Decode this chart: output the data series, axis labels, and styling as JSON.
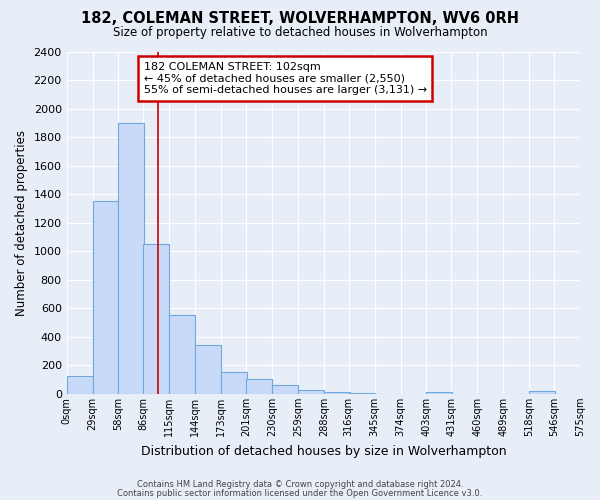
{
  "title": "182, COLEMAN STREET, WOLVERHAMPTON, WV6 0RH",
  "subtitle": "Size of property relative to detached houses in Wolverhampton",
  "xlabel": "Distribution of detached houses by size in Wolverhampton",
  "ylabel": "Number of detached properties",
  "bin_labels": [
    "0sqm",
    "29sqm",
    "58sqm",
    "86sqm",
    "115sqm",
    "144sqm",
    "173sqm",
    "201sqm",
    "230sqm",
    "259sqm",
    "288sqm",
    "316sqm",
    "345sqm",
    "374sqm",
    "403sqm",
    "431sqm",
    "460sqm",
    "489sqm",
    "518sqm",
    "546sqm",
    "575sqm"
  ],
  "bar_heights": [
    125,
    1350,
    1900,
    1050,
    550,
    340,
    155,
    105,
    60,
    30,
    10,
    5,
    0,
    0,
    15,
    0,
    0,
    0,
    20,
    0
  ],
  "bar_color": "#c9daf8",
  "bar_edge_color": "#6fa8dc",
  "ylim": [
    0,
    2400
  ],
  "yticks": [
    0,
    200,
    400,
    600,
    800,
    1000,
    1200,
    1400,
    1600,
    1800,
    2000,
    2200,
    2400
  ],
  "property_sqm": 102,
  "property_line_label": "182 COLEMAN STREET: 102sqm",
  "annotation_line1": "← 45% of detached houses are smaller (2,550)",
  "annotation_line2": "55% of semi-detached houses are larger (3,131) →",
  "annotation_box_color": "#ffffff",
  "annotation_box_edge": "#cc0000",
  "footer1": "Contains HM Land Registry data © Crown copyright and database right 2024.",
  "footer2": "Contains public sector information licensed under the Open Government Licence v3.0.",
  "background_color": "#e8eef8",
  "grid_color": "#ffffff",
  "bin_starts": [
    0,
    29,
    58,
    86,
    115,
    144,
    173,
    201,
    230,
    259,
    288,
    316,
    345,
    374,
    403,
    431,
    460,
    489,
    518,
    546
  ],
  "bin_width": 29
}
